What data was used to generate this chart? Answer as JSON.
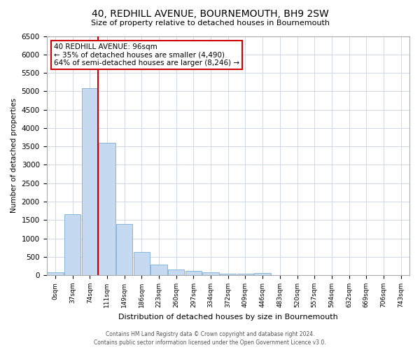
{
  "title": "40, REDHILL AVENUE, BOURNEMOUTH, BH9 2SW",
  "subtitle": "Size of property relative to detached houses in Bournemouth",
  "xlabel": "Distribution of detached houses by size in Bournemouth",
  "ylabel": "Number of detached properties",
  "footer_line1": "Contains HM Land Registry data © Crown copyright and database right 2024.",
  "footer_line2": "Contains public sector information licensed under the Open Government Licence v3.0.",
  "bar_labels": [
    "0sqm",
    "37sqm",
    "74sqm",
    "111sqm",
    "149sqm",
    "186sqm",
    "223sqm",
    "260sqm",
    "297sqm",
    "334sqm",
    "372sqm",
    "409sqm",
    "446sqm",
    "483sqm",
    "520sqm",
    "557sqm",
    "594sqm",
    "632sqm",
    "669sqm",
    "706sqm",
    "743sqm"
  ],
  "bar_values": [
    75,
    1650,
    5080,
    3600,
    1400,
    620,
    290,
    155,
    110,
    75,
    45,
    30,
    60,
    0,
    0,
    0,
    0,
    0,
    0,
    0,
    0
  ],
  "bar_color": "#c5d9f0",
  "bar_edge_color": "#7bafd4",
  "ylim": [
    0,
    6500
  ],
  "yticks": [
    0,
    500,
    1000,
    1500,
    2000,
    2500,
    3000,
    3500,
    4000,
    4500,
    5000,
    5500,
    6000,
    6500
  ],
  "property_bar_index": 2,
  "annotation_title": "40 REDHILL AVENUE: 96sqm",
  "annotation_line1": "← 35% of detached houses are smaller (4,490)",
  "annotation_line2": "64% of semi-detached houses are larger (8,246) →",
  "annotation_box_color": "#ffffff",
  "annotation_box_edge": "#cc0000",
  "marker_line_color": "#cc0000",
  "background_color": "#ffffff",
  "grid_color": "#d0d8e8"
}
